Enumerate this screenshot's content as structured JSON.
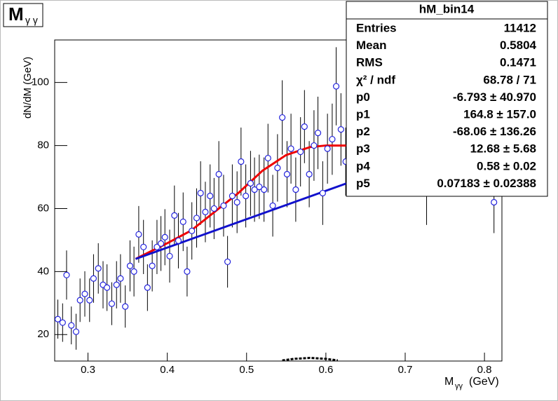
{
  "chart_data": {
    "type": "scatter",
    "title_main": "M",
    "title_sub": "γ γ",
    "ylabel": "dN/dM (GeV)",
    "xlabel_main": "M",
    "xlabel_sub": "γγ",
    "xlabel_unit": "(GeV)",
    "xlim": [
      0.258,
      0.822
    ],
    "ylim": [
      11.6,
      113.5
    ],
    "xticks": [
      0.3,
      0.4,
      0.5,
      0.6,
      0.7,
      0.8
    ],
    "yticks": [
      20,
      40,
      60,
      80,
      100
    ],
    "points": {
      "color": "#2222dd",
      "x": [
        0.262,
        0.268,
        0.273,
        0.279,
        0.285,
        0.29,
        0.296,
        0.302,
        0.307,
        0.313,
        0.319,
        0.324,
        0.33,
        0.336,
        0.341,
        0.347,
        0.353,
        0.358,
        0.364,
        0.37,
        0.375,
        0.381,
        0.387,
        0.392,
        0.397,
        0.403,
        0.409,
        0.414,
        0.42,
        0.425,
        0.431,
        0.437,
        0.442,
        0.448,
        0.454,
        0.459,
        0.465,
        0.471,
        0.476,
        0.482,
        0.488,
        0.493,
        0.499,
        0.505,
        0.51,
        0.516,
        0.522,
        0.527,
        0.533,
        0.539,
        0.545,
        0.551,
        0.556,
        0.562,
        0.568,
        0.573,
        0.579,
        0.585,
        0.59,
        0.596,
        0.602,
        0.608,
        0.613,
        0.619,
        0.625,
        0.727,
        0.812
      ],
      "values": [
        24.9,
        23.8,
        38.9,
        22.9,
        20.9,
        30.9,
        32.9,
        30.9,
        37.8,
        41,
        35.8,
        34.9,
        29.8,
        35.8,
        37.8,
        28.9,
        41.8,
        40,
        51.8,
        47.8,
        34.9,
        41.8,
        47.8,
        48.9,
        50.9,
        44.9,
        57.8,
        49.8,
        55.8,
        40,
        52.9,
        57,
        64.9,
        58.9,
        64,
        60,
        70.9,
        60.9,
        43.1,
        64,
        62,
        74.9,
        64,
        68,
        66,
        66.9,
        66,
        76,
        60.9,
        72.9,
        88.9,
        70.9,
        79,
        66,
        78,
        86,
        70.9,
        80,
        84,
        64.9,
        79,
        82,
        98.8,
        85.1,
        74.9,
        64.9,
        62
      ],
      "errors": [
        6.2,
        6.1,
        7.8,
        6.0,
        5.7,
        6.9,
        7.2,
        6.9,
        7.7,
        8.0,
        7.5,
        7.4,
        6.8,
        7.5,
        7.7,
        6.7,
        8.1,
        7.9,
        9.0,
        8.6,
        7.4,
        8.1,
        8.6,
        8.7,
        8.9,
        8.4,
        9.5,
        8.8,
        9.3,
        7.9,
        9.1,
        9.4,
        10.1,
        9.6,
        10.0,
        9.7,
        10.5,
        9.8,
        8.2,
        10.0,
        9.8,
        10.8,
        10.0,
        10.3,
        10.2,
        10.2,
        10.2,
        10.9,
        9.8,
        10.7,
        11.8,
        10.5,
        11.1,
        10.2,
        11.0,
        11.6,
        10.5,
        11.2,
        11.5,
        10.1,
        11.1,
        11.3,
        12.4,
        11.5,
        10.8,
        10.1,
        9.8
      ]
    },
    "curves": [
      {
        "color": "#ee0000",
        "x": [
          0.36,
          0.4,
          0.43,
          0.46,
          0.49,
          0.52,
          0.55,
          0.58,
          0.6,
          0.63
        ],
        "values": [
          44,
          49,
          53,
          59,
          65,
          72,
          77,
          79.5,
          80,
          80
        ]
      },
      {
        "color": "#1111cc",
        "x": [
          0.36,
          0.715
        ],
        "values": [
          44,
          76
        ]
      },
      {
        "color": "#000000",
        "dashed": true,
        "x": [
          0.545,
          0.56,
          0.58,
          0.6,
          0.615
        ],
        "values": [
          11.8,
          12.3,
          12.6,
          12.3,
          11.8
        ]
      }
    ],
    "stats": {
      "title": "hM_bin14",
      "rows": [
        [
          "Entries",
          "11412"
        ],
        [
          "Mean",
          "0.5804"
        ],
        [
          "RMS",
          "0.1471"
        ],
        [
          "χ² / ndf",
          "68.78 / 71"
        ],
        [
          "p0",
          "-6.793 ± 40.970"
        ],
        [
          "p1",
          "164.8 ± 157.0"
        ],
        [
          "p2",
          "-68.06 ± 136.26"
        ],
        [
          "p3",
          "12.68 ± 5.68"
        ],
        [
          "p4",
          "0.58 ± 0.02"
        ],
        [
          "p5",
          "0.07183 ± 0.02388"
        ]
      ]
    }
  }
}
